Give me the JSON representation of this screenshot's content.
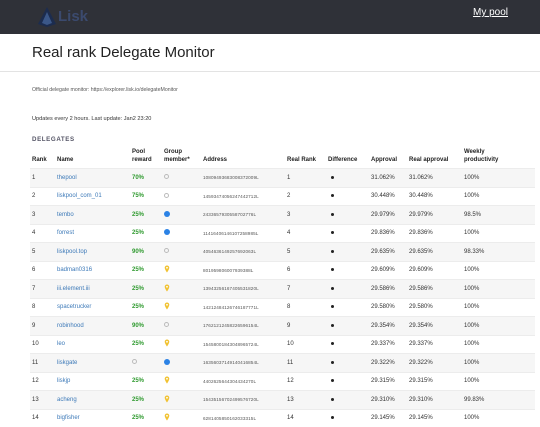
{
  "header": {
    "my_pool": "My pool",
    "logo_text": "Lisk"
  },
  "page": {
    "title": "Real rank Delegate Monitor",
    "official": "Official delegate monitor: https://explorer.lisk.io/delegateMonitor",
    "updates": "Updates every 2 hours. Last update: Jan2 23:20",
    "section": "DELEGATES"
  },
  "columns": {
    "rank": "Rank",
    "name": "Name",
    "pool_reward": [
      "Pool",
      "reward"
    ],
    "group_member": [
      "Group",
      "member*"
    ],
    "address": "Address",
    "real_rank": "Real Rank",
    "difference": "Difference",
    "approval": "Approval",
    "real_approval": "Real approval",
    "weekly": [
      "Weekly",
      "productivity"
    ]
  },
  "colors": {
    "blue_member": "#2b82e5",
    "pin_yellow": "#f1c232",
    "reward_green": "#2f9a2f",
    "name_blue": "#3c79b8"
  },
  "rows": [
    {
      "rank": "1",
      "name": "thepool",
      "reward": "70%",
      "member": "empty",
      "address": "10809493683008372009L",
      "real_rank": "1",
      "approval": "31.062%",
      "real_approval": "31.062%",
      "weekly": "100%"
    },
    {
      "rank": "2",
      "name": "liskpool_com_01",
      "reward": "75%",
      "member": "empty",
      "address": "14593474056247442712L",
      "real_rank": "2",
      "approval": "30.448%",
      "real_approval": "30.448%",
      "weekly": "100%"
    },
    {
      "rank": "3",
      "name": "tembo",
      "reward": "25%",
      "member": "blue",
      "address": "2433657930558702776L",
      "real_rank": "3",
      "approval": "29.979%",
      "real_approval": "29.979%",
      "weekly": "98.5%"
    },
    {
      "rank": "4",
      "name": "forrest",
      "reward": "25%",
      "member": "blue",
      "address": "11416406146107258985L",
      "real_rank": "4",
      "approval": "29.836%",
      "real_approval": "29.836%",
      "weekly": "100%"
    },
    {
      "rank": "5",
      "name": "liskpool.top",
      "reward": "90%",
      "member": "empty",
      "address": "4054636149257692063L",
      "real_rank": "5",
      "approval": "29.635%",
      "real_approval": "29.635%",
      "weekly": "98.33%"
    },
    {
      "rank": "6",
      "name": "badman0316",
      "reward": "25%",
      "member": "pin",
      "address": "801959806007939388L",
      "real_rank": "6",
      "approval": "29.609%",
      "real_approval": "29.609%",
      "weekly": "100%"
    },
    {
      "rank": "7",
      "name": "iii.element.iii",
      "reward": "25%",
      "member": "pin",
      "address": "13943256167405531820L",
      "real_rank": "7",
      "approval": "29.586%",
      "real_approval": "29.586%",
      "weekly": "100%"
    },
    {
      "rank": "8",
      "name": "spacetrucker",
      "reward": "25%",
      "member": "pin",
      "address": "14212484126746187771L",
      "real_rank": "8",
      "approval": "29.580%",
      "real_approval": "29.580%",
      "weekly": "100%"
    },
    {
      "rank": "9",
      "name": "robinhood",
      "reward": "90%",
      "member": "empty",
      "address": "17621212458226596154L",
      "real_rank": "9",
      "approval": "29.354%",
      "real_approval": "29.354%",
      "weekly": "100%"
    },
    {
      "rank": "10",
      "name": "leo",
      "reward": "25%",
      "member": "pin",
      "address": "15458001843048965724L",
      "real_rank": "10",
      "approval": "29.337%",
      "real_approval": "29.337%",
      "weekly": "100%"
    },
    {
      "rank": "11",
      "name": "liskgate",
      "reward": "",
      "member": "blue",
      "address": "16356037149140416854L",
      "real_rank": "11",
      "approval": "29.322%",
      "real_approval": "29.322%",
      "weekly": "100%",
      "reward_empty": true
    },
    {
      "rank": "12",
      "name": "liskjp",
      "reward": "25%",
      "member": "pin",
      "address": "4402625644304434270L",
      "real_rank": "12",
      "approval": "29.315%",
      "real_approval": "29.315%",
      "weekly": "100%"
    },
    {
      "rank": "13",
      "name": "acheng",
      "reward": "25%",
      "member": "pin",
      "address": "15435156702499576720L",
      "real_rank": "13",
      "approval": "29.310%",
      "real_approval": "29.310%",
      "weekly": "99.83%"
    },
    {
      "rank": "14",
      "name": "bigfisher",
      "reward": "25%",
      "member": "pin",
      "address": "6281405850162033315L",
      "real_rank": "14",
      "approval": "29.145%",
      "real_approval": "29.145%",
      "weekly": "100%"
    }
  ]
}
